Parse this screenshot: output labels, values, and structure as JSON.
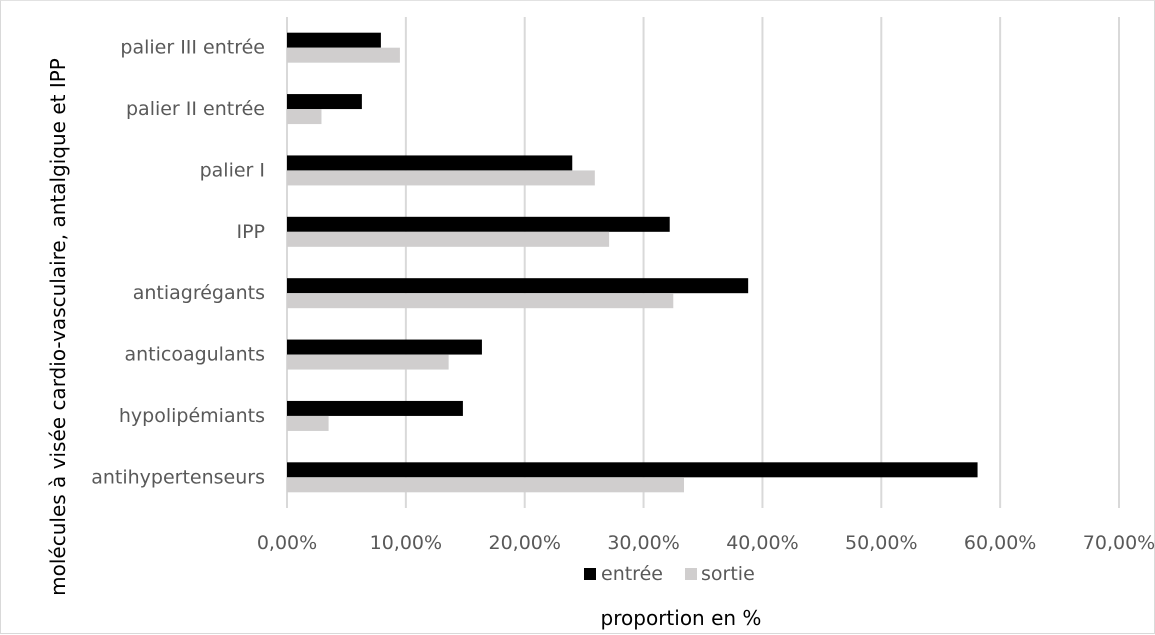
{
  "chart_data": {
    "type": "bar",
    "orientation": "horizontal",
    "categories": [
      "palier III entrée",
      "palier II entrée",
      "palier I",
      "IPP",
      "antiagrégants",
      "anticoagulants",
      "hypolipémiants",
      "antihypertenseurs"
    ],
    "series": [
      {
        "name": "entrée",
        "color": "#000000",
        "values": [
          7.9,
          6.3,
          24.0,
          32.2,
          38.8,
          16.4,
          14.8,
          58.1
        ]
      },
      {
        "name": "sortie",
        "color": "#d0cece",
        "values": [
          9.5,
          2.9,
          25.9,
          27.1,
          32.5,
          13.6,
          3.5,
          33.4
        ]
      }
    ],
    "xlim": [
      0,
      70
    ],
    "xticks": [
      0,
      10,
      20,
      30,
      40,
      50,
      60,
      70
    ],
    "xtick_labels": [
      "0,00%",
      "10,00%",
      "20,00%",
      "30,00%",
      "40,00%",
      "50,00%",
      "60,00%",
      "70,00%"
    ],
    "xlabel": "proportion en %",
    "ylabel": "molécules à visée cardio-vasculaire, antalgique et IPP",
    "grid": "vertical",
    "legend_position": "bottom"
  }
}
